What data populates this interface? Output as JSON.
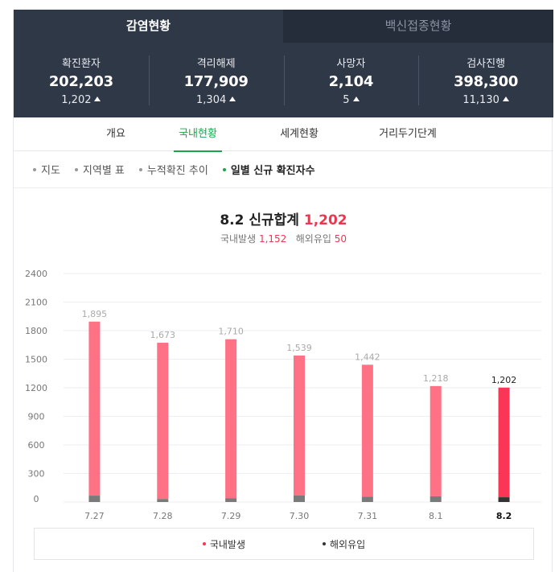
{
  "tabs": {
    "active": "감염현황",
    "inactive": "백신접종현황"
  },
  "stats": [
    {
      "label": "확진환자",
      "value": "202,203",
      "delta": "1,202"
    },
    {
      "label": "격리해제",
      "value": "177,909",
      "delta": "1,304"
    },
    {
      "label": "사망자",
      "value": "2,104",
      "delta": "5"
    },
    {
      "label": "검사진행",
      "value": "398,300",
      "delta": "11,130"
    }
  ],
  "subtabs": [
    {
      "label": "개요",
      "active": false
    },
    {
      "label": "국내현황",
      "active": true
    },
    {
      "label": "세계현황",
      "active": false
    },
    {
      "label": "거리두기단계",
      "active": false
    }
  ],
  "filters": [
    {
      "label": "지도",
      "active": false
    },
    {
      "label": "지역별 표",
      "active": false
    },
    {
      "label": "누적확진 추이",
      "active": false
    },
    {
      "label": "일별 신규 확진자수",
      "active": true
    }
  ],
  "colors": {
    "domestic": "#ff7185",
    "domestic_latest": "#fb3555",
    "overseas": "#7a7a7a",
    "overseas_latest": "#333333",
    "accent_green": "#1aa54a"
  },
  "chart_data": {
    "type": "bar",
    "title": "8.2 신규합계",
    "title_total": "1,202",
    "subtitle": {
      "domestic_label": "국내발생",
      "domestic_value": "1,152",
      "overseas_label": "해외유입",
      "overseas_value": "50"
    },
    "categories": [
      "7.27",
      "7.28",
      "7.29",
      "7.30",
      "7.31",
      "8.1",
      "8.2"
    ],
    "totals_labels": [
      "1,895",
      "1,673",
      "1,710",
      "1,539",
      "1,442",
      "1,218",
      "1,202"
    ],
    "series": [
      {
        "name": "국내발생",
        "values": [
          1828,
          1641,
          1672,
          1471,
          1386,
          1158,
          1152
        ]
      },
      {
        "name": "해외유입",
        "values": [
          67,
          32,
          38,
          68,
          56,
          60,
          50
        ]
      }
    ],
    "yticks": [
      0,
      300,
      600,
      900,
      1200,
      1500,
      1800,
      2100,
      2400
    ],
    "ylim": [
      0,
      2400
    ],
    "grid": true,
    "legend": "bottom"
  }
}
